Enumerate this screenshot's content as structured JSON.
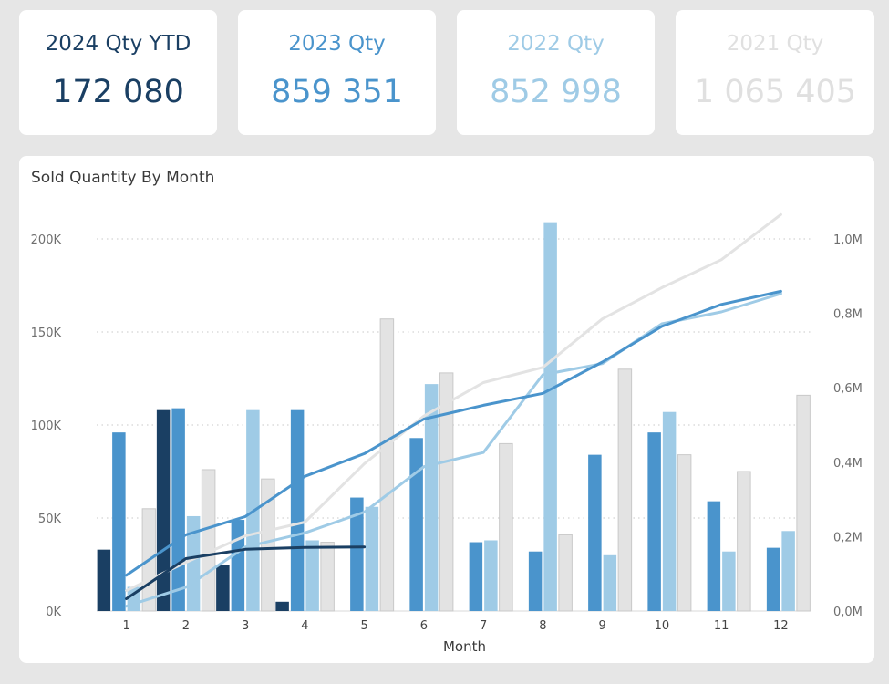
{
  "kpis": [
    {
      "label": "2024 Qty YTD",
      "value": "172 080",
      "color": "#1a3f63"
    },
    {
      "label": "2023 Qty",
      "value": "859 351",
      "color": "#4a94cc"
    },
    {
      "label": "2022 Qty",
      "value": "852 998",
      "color": "#9fcbe6"
    },
    {
      "label": "2021 Qty",
      "value": "1 065 405",
      "color": "#e0e0e0"
    }
  ],
  "colors": {
    "y2024": "#1a3f63",
    "y2023": "#4a94cc",
    "y2022": "#9fcbe6",
    "y2021": "#e3e3e3",
    "grid": "#c8c8c8",
    "axis_text": "#6e6e6e"
  },
  "chart_data": {
    "type": "bar",
    "title": "Sold Quantity By Month",
    "xlabel": "Month",
    "ylabel": "",
    "categories": [
      "1",
      "2",
      "3",
      "4",
      "5",
      "6",
      "7",
      "8",
      "9",
      "10",
      "11",
      "12"
    ],
    "ylim": [
      0,
      225000
    ],
    "y2lim": [
      0,
      1125000
    ],
    "y_ticks": [
      0,
      50000,
      100000,
      150000,
      200000
    ],
    "y_tick_labels": [
      "0K",
      "50K",
      "100K",
      "150K",
      "200K"
    ],
    "y2_ticks": [
      0,
      200000,
      400000,
      600000,
      800000,
      1000000
    ],
    "y2_tick_labels": [
      "0,0M",
      "0,2M",
      "0,4M",
      "0,6M",
      "0,8M",
      "1,0M"
    ],
    "grid": true,
    "bar_series": [
      {
        "name": "2024",
        "values": [
          33000,
          108000,
          25000,
          5000,
          null,
          null,
          null,
          null,
          null,
          null,
          null,
          null
        ]
      },
      {
        "name": "2023",
        "values": [
          96000,
          109000,
          49000,
          108000,
          61000,
          93000,
          37000,
          32000,
          84000,
          96000,
          59000,
          34000
        ]
      },
      {
        "name": "2022",
        "values": [
          13000,
          51000,
          108000,
          38000,
          56000,
          122000,
          38000,
          209000,
          30000,
          107000,
          32000,
          43000
        ]
      },
      {
        "name": "2021",
        "values": [
          55000,
          76000,
          71000,
          37000,
          157000,
          128000,
          90000,
          41000,
          130000,
          84000,
          75000,
          116000
        ]
      }
    ],
    "line_series": [
      {
        "name": "2024 cumulative",
        "values": [
          33000,
          141000,
          166000,
          171000,
          172080,
          null,
          null,
          null,
          null,
          null,
          null,
          null
        ]
      },
      {
        "name": "2023 cumulative",
        "values": [
          96000,
          205000,
          254000,
          362000,
          423000,
          516000,
          553000,
          585000,
          669000,
          765000,
          824000,
          859351
        ]
      },
      {
        "name": "2022 cumulative",
        "values": [
          13000,
          64000,
          172000,
          210000,
          266000,
          388000,
          426000,
          635000,
          665000,
          772000,
          804000,
          852998
        ]
      },
      {
        "name": "2021 cumulative",
        "values": [
          55000,
          131000,
          202000,
          239000,
          396000,
          524000,
          614000,
          655000,
          785000,
          869000,
          944000,
          1065405
        ]
      }
    ]
  }
}
